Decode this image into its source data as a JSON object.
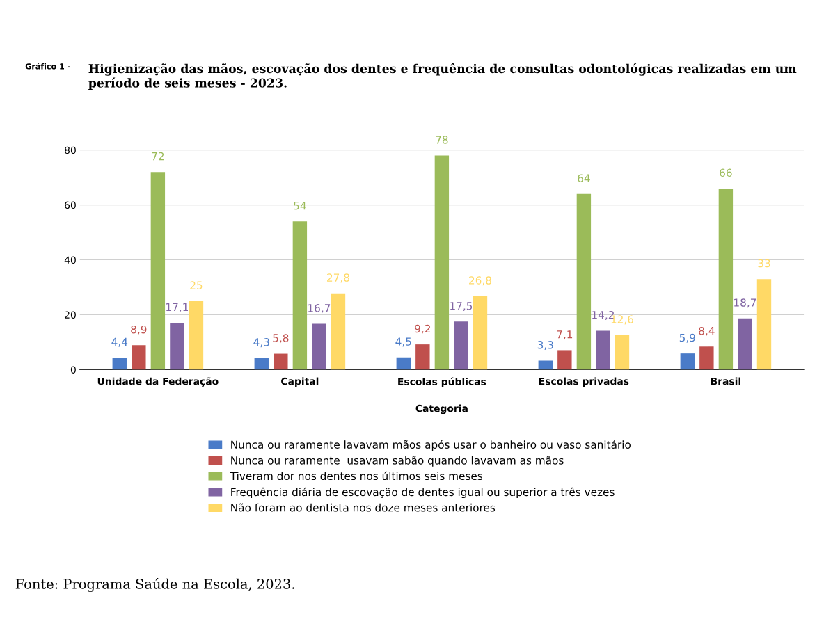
{
  "chart_data": {
    "type": "bar",
    "title": "Higienização das mãos, escovação dos dentes e frequência de consultas odontológicas realizadas em um período de seis meses - 2023.",
    "xlabel": "Categoria",
    "annotations": [
      "Gráfico 1 -",
      "Fonte: Programa Saúde na Escola, 2023."
    ],
    "categories": [
      "Unidade da Federação",
      "Capital",
      "Escolas públicas",
      "Escolas privadas",
      "Brasil"
    ],
    "series": [
      {
        "name": "Nunca ou raramente lavavam mãos após usar o banheiro ou vaso sanitário",
        "color": "#4a7bc8",
        "values": [
          4.4,
          4.3,
          4.5,
          3.3,
          5.9
        ],
        "value_labels": [
          "4,4",
          "4,3",
          "4,5",
          "3,3",
          "5,9"
        ]
      },
      {
        "name": "Nunca ou raramente  usavam sabão quando lavavam as mãos",
        "color": "#c0504d",
        "values": [
          8.9,
          5.8,
          9.2,
          7.1,
          8.4
        ],
        "value_labels": [
          "8,9",
          "5,8",
          "9,2",
          "7,1",
          "8,4"
        ]
      },
      {
        "name": "Tiveram dor nos dentes nos últimos seis meses",
        "color": "#9bbb59",
        "values": [
          72,
          54,
          78,
          64,
          66
        ],
        "value_labels": [
          "72",
          "54",
          "78",
          "64",
          "66"
        ]
      },
      {
        "name": "Frequência diária de escovação de dentes igual ou superior a três vezes",
        "color": "#8064a2",
        "values": [
          17.1,
          16.7,
          17.5,
          14.2,
          18.7
        ],
        "value_labels": [
          "17,1",
          "16,7",
          "17,5",
          "14,2",
          "18,7"
        ]
      },
      {
        "name": "Não foram ao dentista nos doze meses anteriores",
        "color": "#ffd966",
        "values": [
          25,
          27.8,
          26.8,
          12.6,
          33
        ],
        "value_labels": [
          "25",
          "27,8",
          "26,8",
          "12,6",
          "33"
        ]
      }
    ],
    "ylim": [
      0,
      80
    ],
    "yticks": [
      0,
      20,
      40,
      60,
      80
    ],
    "grid": "y",
    "legend": "bottom"
  }
}
